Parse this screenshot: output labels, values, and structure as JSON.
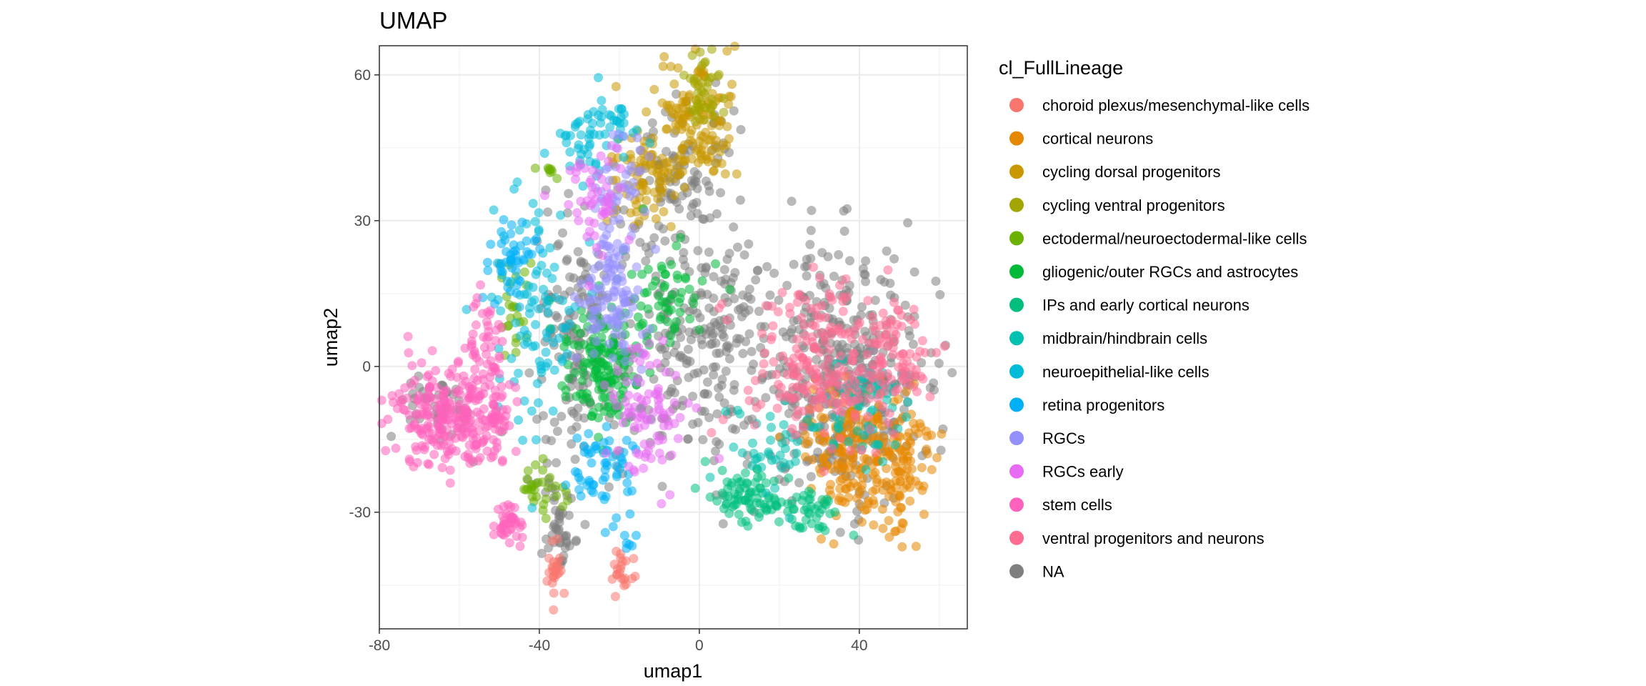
{
  "chart_data": {
    "type": "scatter",
    "title": "UMAP",
    "xlabel": "umap1",
    "ylabel": "umap2",
    "xlim": [
      -80,
      67
    ],
    "ylim": [
      -54,
      66
    ],
    "xticks": [
      -80,
      -40,
      0,
      40
    ],
    "yticks": [
      60,
      30,
      0,
      -30
    ],
    "xtick_labels": [
      "-80",
      "-40",
      "0",
      "40"
    ],
    "ytick_labels": [
      "60",
      "30",
      "0",
      "-30"
    ],
    "grid": true,
    "legend_position": "right",
    "legend_title": "cl_FullLineage",
    "point_alpha": 0.55,
    "series": [
      {
        "name": "choroid plexus/mesenchymal-like cells",
        "color": "#F8766D",
        "clusters": [
          {
            "x": -36,
            "y": -44,
            "sx": 1.0,
            "sy": 3.0,
            "n": 25
          },
          {
            "x": -19,
            "y": -41,
            "sx": 1.5,
            "sy": 2.5,
            "n": 22
          }
        ]
      },
      {
        "name": "cortical neurons",
        "color": "#E58700",
        "clusters": [
          {
            "x": 42,
            "y": -22,
            "sx": 7,
            "sy": 7,
            "n": 160
          },
          {
            "x": 52,
            "y": -18,
            "sx": 4,
            "sy": 6,
            "n": 60
          },
          {
            "x": 35,
            "y": -12,
            "sx": 5,
            "sy": 4,
            "n": 50
          }
        ]
      },
      {
        "name": "cycling dorsal progenitors",
        "color": "#C99800",
        "clusters": [
          {
            "x": -1,
            "y": 50,
            "sx": 5,
            "sy": 7,
            "n": 140
          },
          {
            "x": -13,
            "y": 38,
            "sx": 5,
            "sy": 6,
            "n": 80
          }
        ]
      },
      {
        "name": "cycling ventral progenitors",
        "color": "#A3A500",
        "clusters": [
          {
            "x": 2,
            "y": 57,
            "sx": 3,
            "sy": 3,
            "n": 40
          }
        ]
      },
      {
        "name": "ectodermal/neuroectodermal-like cells",
        "color": "#6BB100",
        "clusters": [
          {
            "x": -47,
            "y": 13,
            "sx": 2,
            "sy": 5,
            "n": 25
          },
          {
            "x": -40,
            "y": -26,
            "sx": 3,
            "sy": 3,
            "n": 30
          },
          {
            "x": -37,
            "y": 40,
            "sx": 2,
            "sy": 1,
            "n": 8
          }
        ]
      },
      {
        "name": "gliogenic/outer RGCs and astrocytes",
        "color": "#00BA38",
        "clusters": [
          {
            "x": -24,
            "y": 0,
            "sx": 5,
            "sy": 6,
            "n": 160
          },
          {
            "x": -8,
            "y": 15,
            "sx": 5,
            "sy": 5,
            "n": 60
          }
        ]
      },
      {
        "name": "IPs and early cortical neurons",
        "color": "#00BF7D",
        "clusters": [
          {
            "x": 12,
            "y": -27,
            "sx": 5,
            "sy": 3,
            "n": 80
          },
          {
            "x": 28,
            "y": -30,
            "sx": 4,
            "sy": 3,
            "n": 40
          }
        ]
      },
      {
        "name": "midbrain/hindbrain cells",
        "color": "#00C0AF",
        "clusters": [
          {
            "x": 42,
            "y": -8,
            "sx": 6,
            "sy": 6,
            "n": 60
          },
          {
            "x": 20,
            "y": -18,
            "sx": 5,
            "sy": 5,
            "n": 40
          }
        ]
      },
      {
        "name": "neuroepithelial-like cells",
        "color": "#00BCD8",
        "clusters": [
          {
            "x": -40,
            "y": 8,
            "sx": 6,
            "sy": 12,
            "n": 90
          },
          {
            "x": -28,
            "y": 46,
            "sx": 4,
            "sy": 4,
            "n": 40
          },
          {
            "x": -22,
            "y": 50,
            "sx": 5,
            "sy": 2,
            "n": 25
          }
        ]
      },
      {
        "name": "retina progenitors",
        "color": "#00B0F6",
        "clusters": [
          {
            "x": -46,
            "y": 22,
            "sx": 3,
            "sy": 4,
            "n": 50
          },
          {
            "x": -24,
            "y": -22,
            "sx": 4,
            "sy": 4,
            "n": 60
          },
          {
            "x": -18,
            "y": -36,
            "sx": 1,
            "sy": 1,
            "n": 6
          }
        ]
      },
      {
        "name": "RGCs",
        "color": "#9590FF",
        "clusters": [
          {
            "x": -22,
            "y": 15,
            "sx": 4,
            "sy": 8,
            "n": 110
          },
          {
            "x": -20,
            "y": 38,
            "sx": 3,
            "sy": 5,
            "n": 40
          }
        ]
      },
      {
        "name": "RGCs early",
        "color": "#E76BF3",
        "clusters": [
          {
            "x": -12,
            "y": -10,
            "sx": 5,
            "sy": 7,
            "n": 90
          },
          {
            "x": -25,
            "y": 35,
            "sx": 4,
            "sy": 6,
            "n": 50
          }
        ]
      },
      {
        "name": "stem cells",
        "color": "#FF62BC",
        "clusters": [
          {
            "x": -62,
            "y": -10,
            "sx": 7,
            "sy": 5,
            "n": 240
          },
          {
            "x": -53,
            "y": -2,
            "sx": 3,
            "sy": 8,
            "n": 80
          },
          {
            "x": -48,
            "y": -33,
            "sx": 2,
            "sy": 2,
            "n": 40
          }
        ]
      },
      {
        "name": "ventral progenitors and neurons",
        "color": "#FF6C91",
        "clusters": [
          {
            "x": 33,
            "y": 0,
            "sx": 10,
            "sy": 8,
            "n": 230
          },
          {
            "x": 50,
            "y": 2,
            "sx": 4,
            "sy": 6,
            "n": 50
          }
        ]
      },
      {
        "name": "NA",
        "color": "#7F7F7F",
        "clusters": [
          {
            "x": 35,
            "y": -2,
            "sx": 11,
            "sy": 13,
            "n": 420
          },
          {
            "x": 0,
            "y": 5,
            "sx": 9,
            "sy": 13,
            "n": 220
          },
          {
            "x": -30,
            "y": 5,
            "sx": 6,
            "sy": 12,
            "n": 150
          },
          {
            "x": -5,
            "y": 40,
            "sx": 6,
            "sy": 9,
            "n": 100
          },
          {
            "x": -35,
            "y": -32,
            "sx": 2,
            "sy": 6,
            "n": 50
          },
          {
            "x": -65,
            "y": -8,
            "sx": 5,
            "sy": 4,
            "n": 50
          }
        ]
      }
    ]
  }
}
